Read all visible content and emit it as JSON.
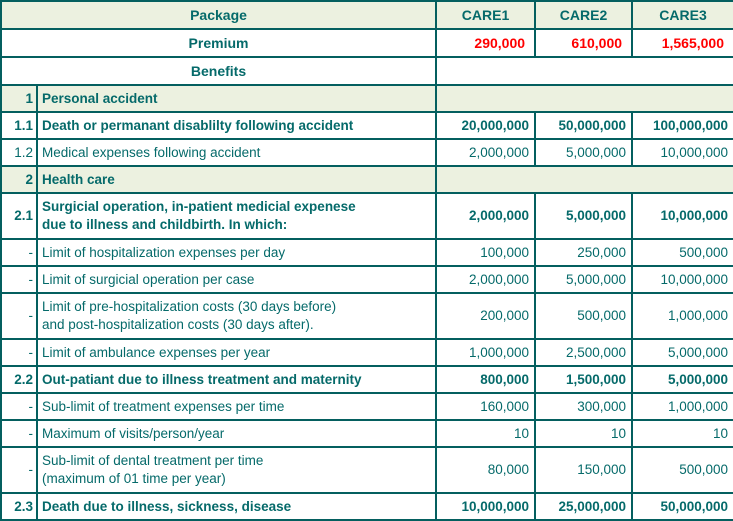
{
  "colors": {
    "text_teal": "#056a6a",
    "border_teal": "#045f5f",
    "row_green": "#ecf1e0",
    "premium_red": "#ff0000"
  },
  "table": {
    "rows": [
      {
        "kind": "package",
        "label": "Package",
        "values": [
          "CARE1",
          "CARE2",
          "CARE3"
        ]
      },
      {
        "kind": "premium",
        "label": "Premium",
        "values": [
          "290,000",
          "610,000",
          "1,565,000"
        ]
      },
      {
        "kind": "benefits",
        "label": "Benefits",
        "values": []
      },
      {
        "kind": "section",
        "num": "1",
        "label": [
          "Personal accident"
        ]
      },
      {
        "kind": "item",
        "num": "1.1",
        "label": [
          "Death or permanant disablilty following accident"
        ],
        "values": [
          "20,000,000",
          "50,000,000",
          "100,000,000"
        ],
        "bold": true
      },
      {
        "kind": "item",
        "num": "1.2",
        "label": [
          "Medical expenses following accident"
        ],
        "values": [
          "2,000,000",
          "5,000,000",
          "10,000,000"
        ],
        "bold": false
      },
      {
        "kind": "section",
        "num": "2",
        "label": [
          "Health care"
        ]
      },
      {
        "kind": "item",
        "num": "2.1",
        "label": [
          "Surgicial operation, in-patient medicial expenese",
          "due to illness and childbirth. In which:"
        ],
        "values": [
          "2,000,000",
          "5,000,000",
          "10,000,000"
        ],
        "bold": true,
        "tall": true
      },
      {
        "kind": "item",
        "num": "-",
        "label": [
          "Limit of hospitalization expenses per day"
        ],
        "values": [
          "100,000",
          "250,000",
          "500,000"
        ],
        "bold": false
      },
      {
        "kind": "item",
        "num": "-",
        "label": [
          "Limit of surgicial operation per case"
        ],
        "values": [
          "2,000,000",
          "5,000,000",
          "10,000,000"
        ],
        "bold": false
      },
      {
        "kind": "item",
        "num": "-",
        "label": [
          "Limit of pre-hospitalization costs (30 days before)",
          "and post-hospitalization costs (30 days after)."
        ],
        "values": [
          "200,000",
          "500,000",
          "1,000,000"
        ],
        "bold": false,
        "tall": true
      },
      {
        "kind": "item",
        "num": "-",
        "label": [
          "Limit of ambulance expenses per year"
        ],
        "values": [
          "1,000,000",
          "2,500,000",
          "5,000,000"
        ],
        "bold": false
      },
      {
        "kind": "item",
        "num": "2.2",
        "label": [
          "Out-patiant due to illness treatment and maternity"
        ],
        "values": [
          "800,000",
          "1,500,000",
          "5,000,000"
        ],
        "bold": true
      },
      {
        "kind": "item",
        "num": "-",
        "label": [
          "Sub-limit of treatment expenses per time"
        ],
        "values": [
          "160,000",
          "300,000",
          "1,000,000"
        ],
        "bold": false
      },
      {
        "kind": "item",
        "num": "-",
        "label": [
          "Maximum of visits/person/year"
        ],
        "values": [
          "10",
          "10",
          "10"
        ],
        "bold": false
      },
      {
        "kind": "item",
        "num": "-",
        "label": [
          "Sub-limit of dental treatment per time",
          "(maximum of 01 time per year)"
        ],
        "values": [
          "80,000",
          "150,000",
          "500,000"
        ],
        "bold": false,
        "tall": true
      },
      {
        "kind": "item",
        "num": "2.3",
        "label": [
          "Death due to illness, sickness, disease"
        ],
        "values": [
          "10,000,000",
          "25,000,000",
          "50,000,000"
        ],
        "bold": true
      }
    ]
  }
}
